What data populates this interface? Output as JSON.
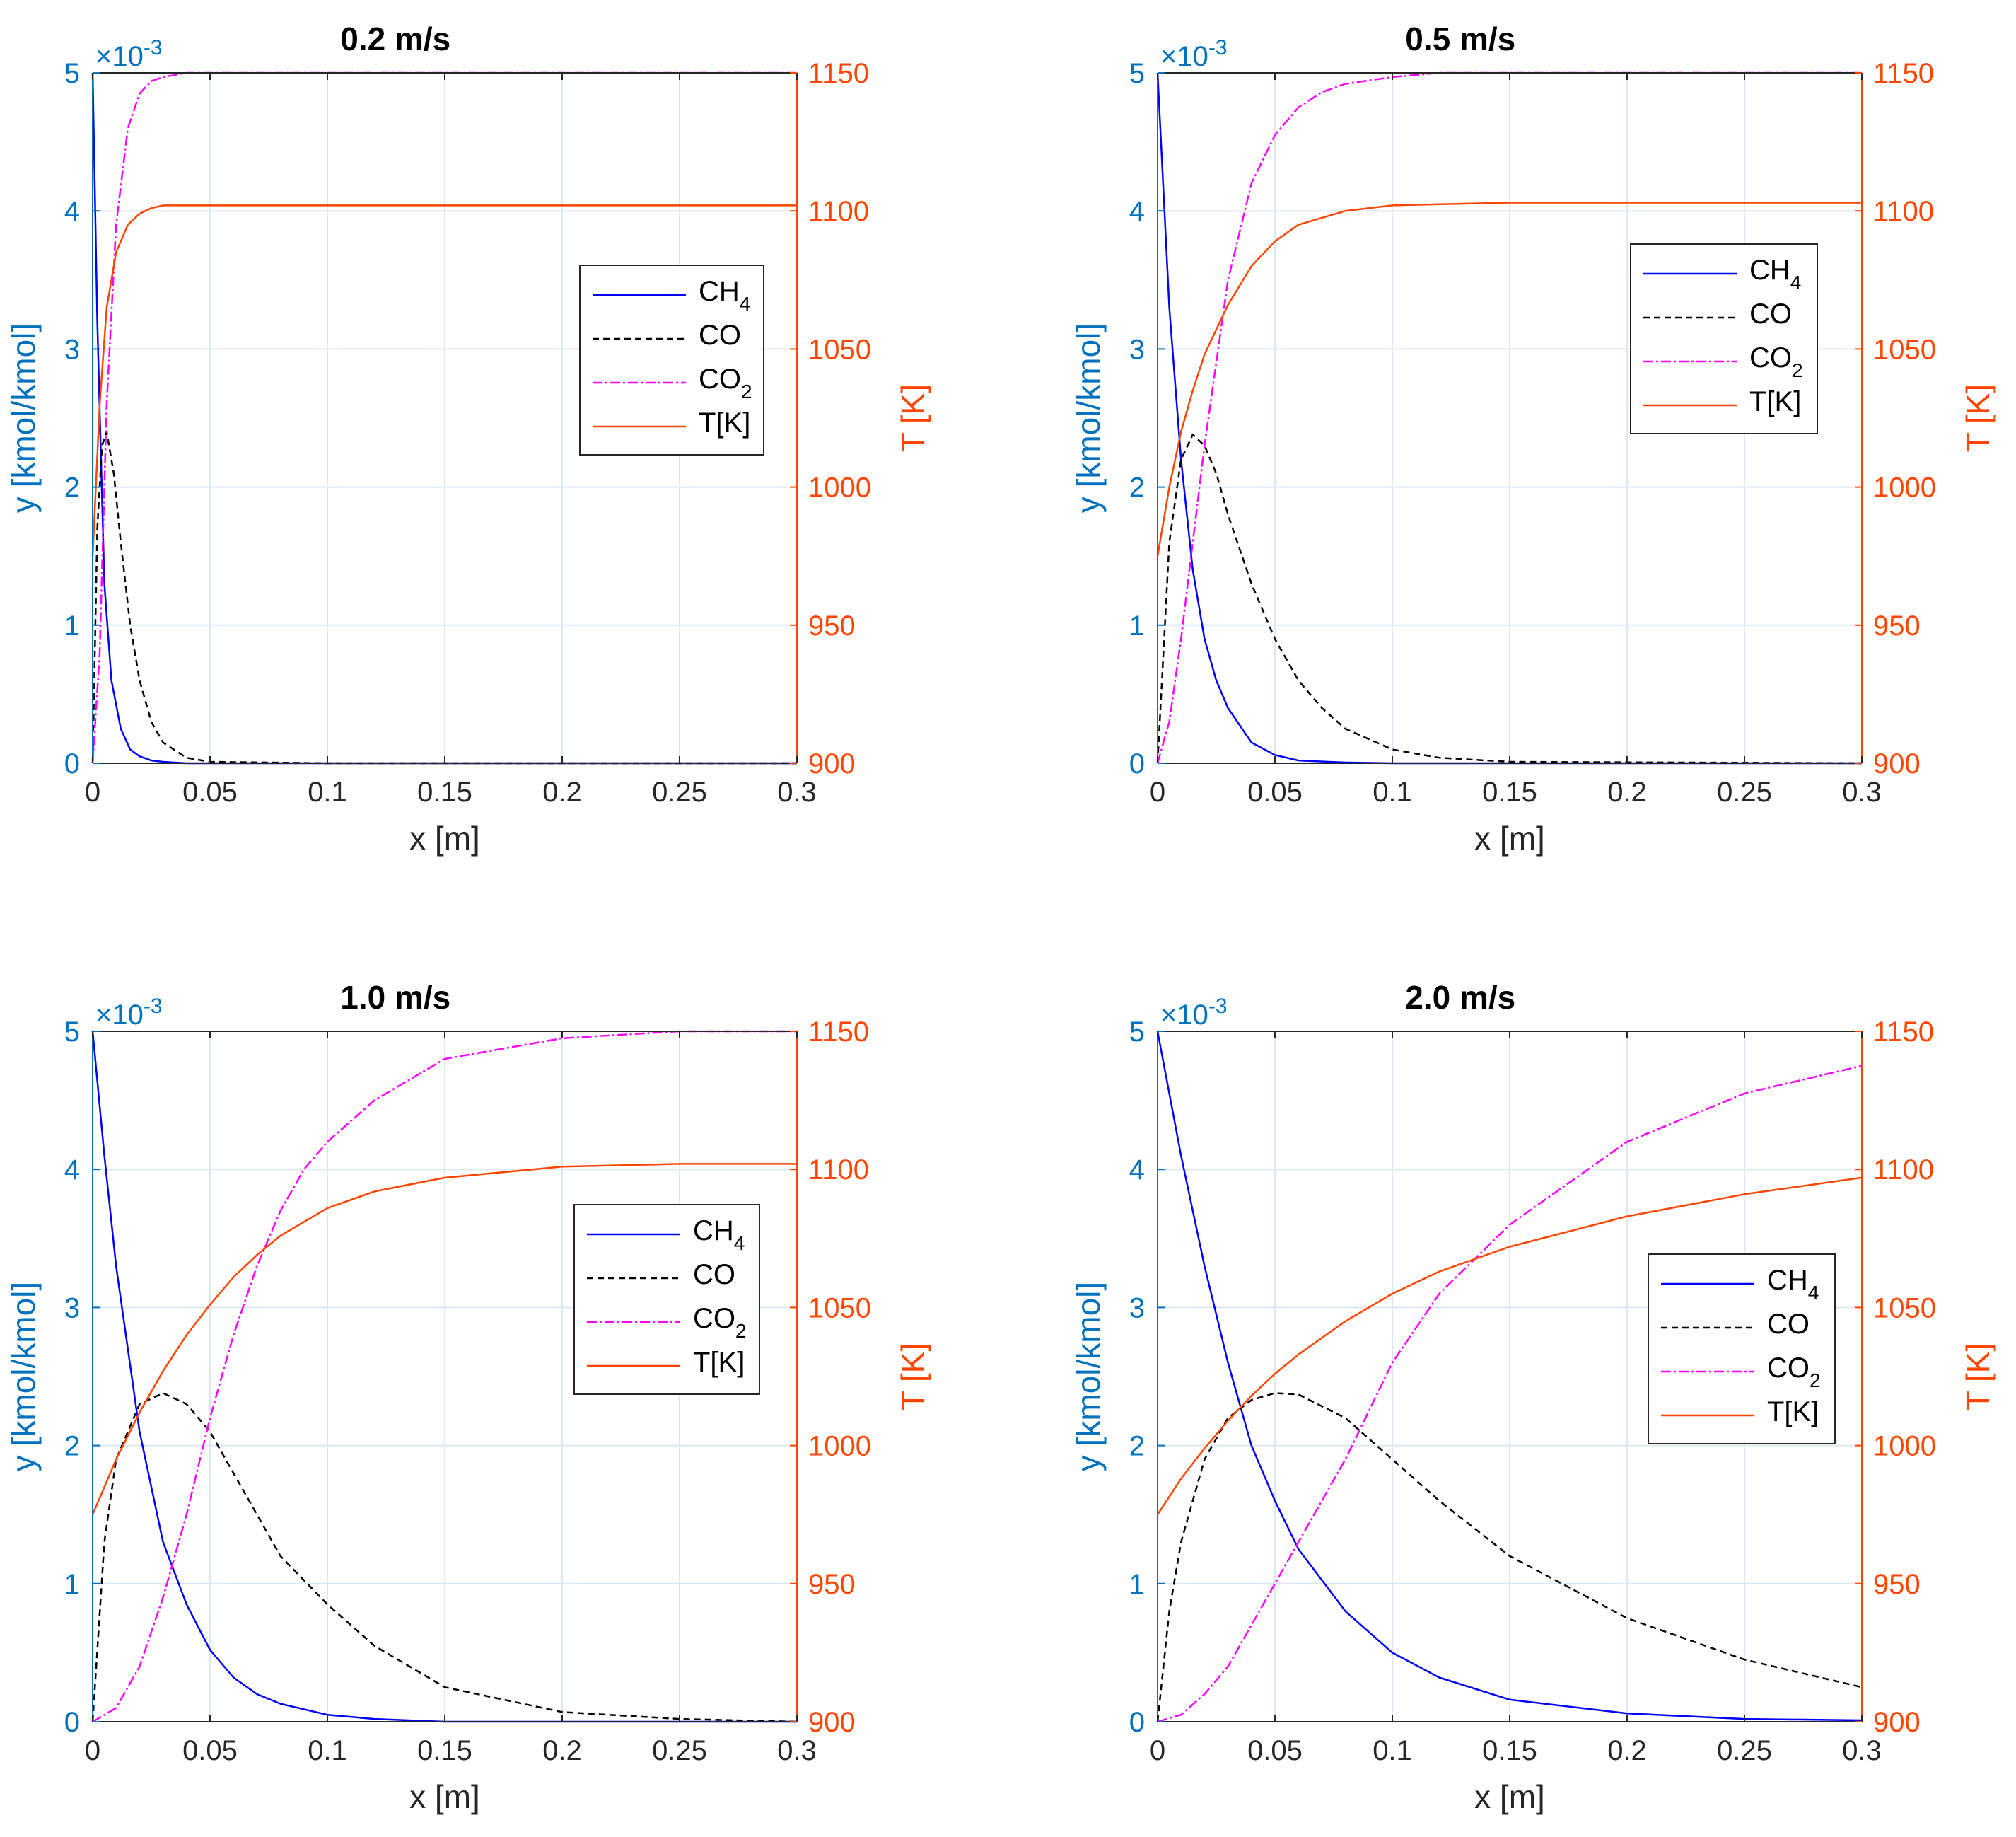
{
  "colors": {
    "left_axis": "#0072BD",
    "right_axis": "#FF4500",
    "ch4": "#0000FF",
    "co": "#000000",
    "co2": "#FF00FF",
    "temp": "#FF4500",
    "grid": "#DCE8F2"
  },
  "chart_data": [
    {
      "type": "line",
      "title": "0.2 m/s",
      "xlabel": "x [m]",
      "ylabel": "y [kmol/kmol]",
      "y2label": "T [K]",
      "xlim": [
        0,
        0.3
      ],
      "ylim": [
        0,
        0.005
      ],
      "y2lim": [
        900,
        1150
      ],
      "xticks": [
        "0",
        "0.05",
        "0.1",
        "0.15",
        "0.2",
        "0.25",
        "0.3"
      ],
      "yticks": [
        "0",
        "1",
        "2",
        "3",
        "4",
        "5"
      ],
      "y2ticks": [
        "900",
        "950",
        "1000",
        "1050",
        "1100",
        "1150"
      ],
      "exponent_base": "×10",
      "exponent_power": "-3",
      "legend": {
        "position": "center-right",
        "entries": [
          {
            "base": "CH",
            "sub": "4"
          },
          {
            "base": "CO",
            "sub": ""
          },
          {
            "base": "CO",
            "sub": "2"
          },
          {
            "base": "T[K]",
            "sub": ""
          }
        ]
      },
      "series": [
        {
          "name": "CH4",
          "axis": "left",
          "style": "solid",
          "x": [
            0,
            0.002,
            0.005,
            0.008,
            0.012,
            0.016,
            0.02,
            0.025,
            0.03,
            0.04,
            0.05,
            0.1,
            0.3
          ],
          "y": [
            0.005,
            0.0032,
            0.0013,
            0.0006,
            0.00025,
            0.0001,
            5e-05,
            2e-05,
            1e-05,
            0,
            0,
            0,
            0
          ]
        },
        {
          "name": "CO",
          "axis": "left",
          "style": "dashed",
          "x": [
            0,
            0.002,
            0.004,
            0.006,
            0.009,
            0.012,
            0.016,
            0.02,
            0.025,
            0.03,
            0.04,
            0.05,
            0.1,
            0.3
          ],
          "y": [
            0,
            0.0017,
            0.0023,
            0.0024,
            0.0021,
            0.0016,
            0.001,
            0.0006,
            0.0003,
            0.00015,
            4e-05,
            1e-05,
            0,
            0
          ]
        },
        {
          "name": "CO2",
          "axis": "left",
          "style": "dashdot",
          "x": [
            0,
            0.003,
            0.006,
            0.01,
            0.015,
            0.02,
            0.025,
            0.03,
            0.04,
            0.05,
            0.1,
            0.3
          ],
          "y": [
            0,
            0.0008,
            0.0026,
            0.0039,
            0.0046,
            0.00485,
            0.00494,
            0.00497,
            0.005,
            0.005,
            0.005,
            0.005
          ]
        },
        {
          "name": "T[K]",
          "axis": "right",
          "style": "solid",
          "x": [
            0,
            0.003,
            0.006,
            0.01,
            0.015,
            0.02,
            0.025,
            0.03,
            0.04,
            0.05,
            0.1,
            0.3
          ],
          "y": [
            975,
            1030,
            1065,
            1085,
            1095,
            1099,
            1101,
            1102,
            1102,
            1102,
            1102,
            1102
          ]
        }
      ]
    },
    {
      "type": "line",
      "title": "0.5 m/s",
      "xlabel": "x [m]",
      "ylabel": "y [kmol/kmol]",
      "y2label": "T [K]",
      "xlim": [
        0,
        0.3
      ],
      "ylim": [
        0,
        0.005
      ],
      "y2lim": [
        900,
        1150
      ],
      "xticks": [
        "0",
        "0.05",
        "0.1",
        "0.15",
        "0.2",
        "0.25",
        "0.3"
      ],
      "yticks": [
        "0",
        "1",
        "2",
        "3",
        "4",
        "5"
      ],
      "y2ticks": [
        "900",
        "950",
        "1000",
        "1050",
        "1100",
        "1150"
      ],
      "exponent_base": "×10",
      "exponent_power": "-3",
      "legend": {
        "position": "top-right",
        "entries": [
          {
            "base": "CH",
            "sub": "4"
          },
          {
            "base": "CO",
            "sub": ""
          },
          {
            "base": "CO",
            "sub": "2"
          },
          {
            "base": "T[K]",
            "sub": ""
          }
        ]
      },
      "series": [
        {
          "name": "CH4",
          "axis": "left",
          "style": "solid",
          "x": [
            0,
            0.005,
            0.01,
            0.015,
            0.02,
            0.025,
            0.03,
            0.04,
            0.05,
            0.06,
            0.08,
            0.1,
            0.3
          ],
          "y": [
            0.005,
            0.0033,
            0.0022,
            0.0014,
            0.0009,
            0.0006,
            0.0004,
            0.00015,
            6e-05,
            2e-05,
            5e-06,
            0,
            0
          ]
        },
        {
          "name": "CO",
          "axis": "left",
          "style": "dashed",
          "x": [
            0,
            0.005,
            0.01,
            0.015,
            0.02,
            0.025,
            0.03,
            0.04,
            0.05,
            0.06,
            0.07,
            0.08,
            0.1,
            0.12,
            0.15,
            0.3
          ],
          "y": [
            0,
            0.0016,
            0.0022,
            0.00238,
            0.0023,
            0.0021,
            0.0018,
            0.0013,
            0.0009,
            0.0006,
            0.0004,
            0.00025,
            0.0001,
            4e-05,
            1e-05,
            0
          ]
        },
        {
          "name": "CO2",
          "axis": "left",
          "style": "dashdot",
          "x": [
            0,
            0.005,
            0.01,
            0.02,
            0.03,
            0.04,
            0.05,
            0.06,
            0.07,
            0.08,
            0.1,
            0.12,
            0.15,
            0.2,
            0.3
          ],
          "y": [
            0,
            0.0003,
            0.0009,
            0.0023,
            0.0035,
            0.0042,
            0.00455,
            0.00475,
            0.00486,
            0.00492,
            0.00497,
            0.005,
            0.005,
            0.005,
            0.005
          ]
        },
        {
          "name": "T[K]",
          "axis": "right",
          "style": "solid",
          "x": [
            0,
            0.005,
            0.01,
            0.015,
            0.02,
            0.03,
            0.04,
            0.05,
            0.06,
            0.08,
            0.1,
            0.15,
            0.2,
            0.3
          ],
          "y": [
            975,
            1000,
            1020,
            1035,
            1048,
            1066,
            1080,
            1089,
            1095,
            1100,
            1102,
            1103,
            1103,
            1103
          ]
        }
      ]
    },
    {
      "type": "line",
      "title": "1.0 m/s",
      "xlabel": "x [m]",
      "ylabel": "y [kmol/kmol]",
      "y2label": "T [K]",
      "xlim": [
        0,
        0.3
      ],
      "ylim": [
        0,
        0.005
      ],
      "y2lim": [
        900,
        1150
      ],
      "xticks": [
        "0",
        "0.05",
        "0.1",
        "0.15",
        "0.2",
        "0.25",
        "0.3"
      ],
      "yticks": [
        "0",
        "1",
        "2",
        "3",
        "4",
        "5"
      ],
      "y2ticks": [
        "900",
        "950",
        "1000",
        "1050",
        "1100",
        "1150"
      ],
      "exponent_base": "×10",
      "exponent_power": "-3",
      "legend": {
        "position": "center-right",
        "entries": [
          {
            "base": "CH",
            "sub": "4"
          },
          {
            "base": "CO",
            "sub": ""
          },
          {
            "base": "CO",
            "sub": "2"
          },
          {
            "base": "T[K]",
            "sub": ""
          }
        ]
      },
      "series": [
        {
          "name": "CH4",
          "axis": "left",
          "style": "solid",
          "x": [
            0,
            0.005,
            0.01,
            0.02,
            0.03,
            0.04,
            0.05,
            0.06,
            0.07,
            0.08,
            0.1,
            0.12,
            0.15,
            0.2,
            0.3
          ],
          "y": [
            0.005,
            0.0041,
            0.0033,
            0.0021,
            0.0013,
            0.00085,
            0.00052,
            0.00032,
            0.0002,
            0.00013,
            5e-05,
            2e-05,
            0,
            0,
            0
          ]
        },
        {
          "name": "CO",
          "axis": "left",
          "style": "dashed",
          "x": [
            0,
            0.005,
            0.01,
            0.02,
            0.03,
            0.04,
            0.05,
            0.06,
            0.08,
            0.1,
            0.12,
            0.15,
            0.2,
            0.25,
            0.3
          ],
          "y": [
            0,
            0.0013,
            0.0019,
            0.0023,
            0.00238,
            0.0023,
            0.0021,
            0.0018,
            0.0012,
            0.00085,
            0.00055,
            0.00025,
            7e-05,
            2e-05,
            0
          ]
        },
        {
          "name": "CO2",
          "axis": "left",
          "style": "dashdot",
          "x": [
            0,
            0.01,
            0.02,
            0.03,
            0.04,
            0.05,
            0.06,
            0.07,
            0.08,
            0.09,
            0.1,
            0.12,
            0.15,
            0.2,
            0.25,
            0.3
          ],
          "y": [
            0,
            0.0001,
            0.0004,
            0.0009,
            0.0015,
            0.0022,
            0.0028,
            0.0033,
            0.0037,
            0.004,
            0.0042,
            0.0045,
            0.0048,
            0.00495,
            0.005,
            0.005
          ]
        },
        {
          "name": "T[K]",
          "axis": "right",
          "style": "solid",
          "x": [
            0,
            0.01,
            0.02,
            0.03,
            0.04,
            0.05,
            0.06,
            0.07,
            0.08,
            0.1,
            0.12,
            0.15,
            0.2,
            0.25,
            0.3
          ],
          "y": [
            975,
            995,
            1012,
            1027,
            1040,
            1051,
            1061,
            1069,
            1076,
            1086,
            1092,
            1097,
            1101,
            1102,
            1102
          ]
        }
      ]
    },
    {
      "type": "line",
      "title": "2.0 m/s",
      "xlabel": "x [m]",
      "ylabel": "y [kmol/kmol]",
      "y2label": "T [K]",
      "xlim": [
        0,
        0.3
      ],
      "ylim": [
        0,
        0.005
      ],
      "y2lim": [
        900,
        1150
      ],
      "xticks": [
        "0",
        "0.05",
        "0.1",
        "0.15",
        "0.2",
        "0.25",
        "0.3"
      ],
      "yticks": [
        "0",
        "1",
        "2",
        "3",
        "4",
        "5"
      ],
      "y2ticks": [
        "900",
        "950",
        "1000",
        "1050",
        "1100",
        "1150"
      ],
      "exponent_base": "×10",
      "exponent_power": "-3",
      "legend": {
        "position": "center-right",
        "entries": [
          {
            "base": "CH",
            "sub": "4"
          },
          {
            "base": "CO",
            "sub": ""
          },
          {
            "base": "CO",
            "sub": "2"
          },
          {
            "base": "T[K]",
            "sub": ""
          }
        ]
      },
      "series": [
        {
          "name": "CH4",
          "axis": "left",
          "style": "solid",
          "x": [
            0,
            0.01,
            0.02,
            0.03,
            0.04,
            0.05,
            0.06,
            0.08,
            0.1,
            0.12,
            0.15,
            0.2,
            0.25,
            0.3
          ],
          "y": [
            0.005,
            0.0041,
            0.0033,
            0.0026,
            0.002,
            0.0016,
            0.00125,
            0.0008,
            0.0005,
            0.00032,
            0.00016,
            6e-05,
            2e-05,
            1e-05
          ]
        },
        {
          "name": "CO",
          "axis": "left",
          "style": "dashed",
          "x": [
            0,
            0.005,
            0.01,
            0.02,
            0.03,
            0.04,
            0.05,
            0.06,
            0.08,
            0.1,
            0.12,
            0.15,
            0.2,
            0.25,
            0.3
          ],
          "y": [
            0,
            0.0008,
            0.0013,
            0.0019,
            0.0022,
            0.00233,
            0.00238,
            0.00237,
            0.0022,
            0.0019,
            0.0016,
            0.0012,
            0.00075,
            0.00045,
            0.00025
          ]
        },
        {
          "name": "CO2",
          "axis": "left",
          "style": "dashdot",
          "x": [
            0,
            0.01,
            0.02,
            0.03,
            0.04,
            0.05,
            0.06,
            0.07,
            0.08,
            0.1,
            0.12,
            0.15,
            0.2,
            0.25,
            0.3
          ],
          "y": [
            0,
            5e-05,
            0.0002,
            0.0004,
            0.0007,
            0.001,
            0.0013,
            0.0016,
            0.0019,
            0.0026,
            0.0031,
            0.0036,
            0.0042,
            0.00455,
            0.00475
          ]
        },
        {
          "name": "T[K]",
          "axis": "right",
          "style": "solid",
          "x": [
            0,
            0.01,
            0.02,
            0.03,
            0.04,
            0.05,
            0.06,
            0.08,
            0.1,
            0.12,
            0.15,
            0.2,
            0.25,
            0.3
          ],
          "y": [
            975,
            988,
            999,
            1009,
            1018,
            1026,
            1033,
            1045,
            1055,
            1063,
            1072,
            1083,
            1091,
            1097
          ]
        }
      ]
    }
  ]
}
